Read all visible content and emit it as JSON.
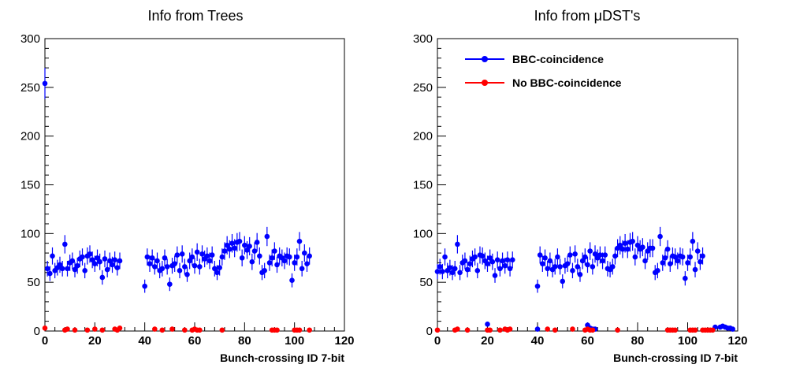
{
  "chart_data": [
    {
      "type": "scatter",
      "title": "Info from Trees",
      "xlabel": "Bunch-crossing ID 7-bit",
      "ylabel": "",
      "xlim": [
        0,
        120
      ],
      "ylim": [
        0,
        300
      ],
      "xticks": [
        "0",
        "20",
        "40",
        "60",
        "80",
        "100",
        "120"
      ],
      "yticks": [
        "0",
        "50",
        "100",
        "150",
        "200",
        "250",
        "300"
      ],
      "legend": null,
      "series": [
        {
          "color": "#0000ff",
          "points": [
            [
              0,
              254
            ],
            [
              1,
              64
            ],
            [
              2,
              59
            ],
            [
              3,
              77
            ],
            [
              4,
              62
            ],
            [
              5,
              65
            ],
            [
              6,
              68
            ],
            [
              7,
              64
            ],
            [
              8,
              89
            ],
            [
              9,
              64
            ],
            [
              10,
              70
            ],
            [
              11,
              72
            ],
            [
              12,
              63
            ],
            [
              13,
              67
            ],
            [
              14,
              74
            ],
            [
              15,
              76
            ],
            [
              16,
              62
            ],
            [
              17,
              77
            ],
            [
              18,
              79
            ],
            [
              19,
              73
            ],
            [
              20,
              69
            ],
            [
              21,
              75
            ],
            [
              22,
              71
            ],
            [
              23,
              55
            ],
            [
              24,
              74
            ],
            [
              25,
              63
            ],
            [
              26,
              72
            ],
            [
              27,
              68
            ],
            [
              28,
              73
            ],
            [
              29,
              65
            ],
            [
              30,
              72
            ],
            [
              40,
              46
            ],
            [
              41,
              76
            ],
            [
              42,
              69
            ],
            [
              43,
              75
            ],
            [
              44,
              66
            ],
            [
              45,
              72
            ],
            [
              46,
              62
            ],
            [
              47,
              64
            ],
            [
              48,
              75
            ],
            [
              49,
              66
            ],
            [
              50,
              48
            ],
            [
              51,
              67
            ],
            [
              52,
              69
            ],
            [
              53,
              78
            ],
            [
              54,
              62
            ],
            [
              55,
              79
            ],
            [
              56,
              66
            ],
            [
              57,
              58
            ],
            [
              58,
              72
            ],
            [
              59,
              76
            ],
            [
              60,
              67
            ],
            [
              61,
              81
            ],
            [
              62,
              66
            ],
            [
              63,
              79
            ],
            [
              64,
              74
            ],
            [
              65,
              77
            ],
            [
              66,
              72
            ],
            [
              67,
              78
            ],
            [
              68,
              64
            ],
            [
              69,
              60
            ],
            [
              70,
              65
            ],
            [
              71,
              76
            ],
            [
              72,
              82
            ],
            [
              73,
              88
            ],
            [
              74,
              84
            ],
            [
              75,
              90
            ],
            [
              76,
              85
            ],
            [
              77,
              91
            ],
            [
              78,
              92
            ],
            [
              79,
              75
            ],
            [
              80,
              88
            ],
            [
              81,
              83
            ],
            [
              82,
              87
            ],
            [
              83,
              71
            ],
            [
              84,
              82
            ],
            [
              85,
              91
            ],
            [
              86,
              77
            ],
            [
              87,
              60
            ],
            [
              88,
              62
            ],
            [
              89,
              97
            ],
            [
              90,
              70
            ],
            [
              91,
              75
            ],
            [
              92,
              82
            ],
            [
              93,
              68
            ],
            [
              94,
              77
            ],
            [
              95,
              75
            ],
            [
              96,
              72
            ],
            [
              97,
              77
            ],
            [
              98,
              76
            ],
            [
              99,
              52
            ],
            [
              100,
              70
            ],
            [
              101,
              76
            ],
            [
              102,
              92
            ],
            [
              103,
              64
            ],
            [
              104,
              80
            ],
            [
              105,
              69
            ],
            [
              106,
              77
            ]
          ]
        },
        {
          "color": "#ff0000",
          "points": [
            [
              0,
              3
            ],
            [
              8,
              1
            ],
            [
              9,
              2
            ],
            [
              12,
              1
            ],
            [
              17,
              1
            ],
            [
              20,
              2
            ],
            [
              23,
              1
            ],
            [
              28,
              2
            ],
            [
              29,
              1
            ],
            [
              30,
              3
            ],
            [
              44,
              2
            ],
            [
              47,
              1
            ],
            [
              51,
              2
            ],
            [
              56,
              1
            ],
            [
              59,
              1
            ],
            [
              60,
              2
            ],
            [
              61,
              1
            ],
            [
              62,
              1
            ],
            [
              71,
              1
            ],
            [
              91,
              1
            ],
            [
              92,
              1
            ],
            [
              93,
              1
            ],
            [
              100,
              1
            ],
            [
              101,
              1
            ],
            [
              102,
              1
            ],
            [
              106,
              1
            ]
          ]
        }
      ]
    },
    {
      "type": "scatter",
      "title": "Info from μDST's",
      "xlabel": "Bunch-crossing ID 7-bit",
      "ylabel": "",
      "xlim": [
        0,
        120
      ],
      "ylim": [
        0,
        300
      ],
      "xticks": [
        "0",
        "20",
        "40",
        "60",
        "80",
        "100",
        "120"
      ],
      "yticks": [
        "0",
        "50",
        "100",
        "150",
        "200",
        "250",
        "300"
      ],
      "legend": "top-left",
      "series": [
        {
          "name": "BBC-coincidence",
          "color": "#0000ff",
          "points": [
            [
              0,
              61
            ],
            [
              1,
              66
            ],
            [
              2,
              61
            ],
            [
              3,
              76
            ],
            [
              4,
              62
            ],
            [
              5,
              65
            ],
            [
              6,
              60
            ],
            [
              7,
              64
            ],
            [
              8,
              89
            ],
            [
              9,
              60
            ],
            [
              10,
              70
            ],
            [
              11,
              72
            ],
            [
              12,
              63
            ],
            [
              13,
              69
            ],
            [
              14,
              74
            ],
            [
              15,
              76
            ],
            [
              16,
              62
            ],
            [
              17,
              78
            ],
            [
              18,
              77
            ],
            [
              19,
              72
            ],
            [
              20,
              69
            ],
            [
              21,
              75
            ],
            [
              22,
              71
            ],
            [
              23,
              57
            ],
            [
              24,
              73
            ],
            [
              25,
              64
            ],
            [
              26,
              72
            ],
            [
              27,
              67
            ],
            [
              28,
              73
            ],
            [
              29,
              64
            ],
            [
              30,
              73
            ],
            [
              40,
              46
            ],
            [
              41,
              78
            ],
            [
              42,
              69
            ],
            [
              43,
              75
            ],
            [
              44,
              64
            ],
            [
              45,
              72
            ],
            [
              46,
              63
            ],
            [
              47,
              66
            ],
            [
              48,
              76
            ],
            [
              49,
              66
            ],
            [
              50,
              51
            ],
            [
              51,
              67
            ],
            [
              52,
              69
            ],
            [
              53,
              78
            ],
            [
              54,
              62
            ],
            [
              55,
              79
            ],
            [
              56,
              66
            ],
            [
              57,
              58
            ],
            [
              58,
              72
            ],
            [
              59,
              76
            ],
            [
              60,
              68
            ],
            [
              61,
              82
            ],
            [
              62,
              66
            ],
            [
              63,
              79
            ],
            [
              64,
              75
            ],
            [
              65,
              78
            ],
            [
              66,
              72
            ],
            [
              67,
              78
            ],
            [
              68,
              64
            ],
            [
              69,
              63
            ],
            [
              70,
              66
            ],
            [
              71,
              77
            ],
            [
              72,
              85
            ],
            [
              73,
              88
            ],
            [
              74,
              84
            ],
            [
              75,
              90
            ],
            [
              76,
              84
            ],
            [
              77,
              91
            ],
            [
              78,
              92
            ],
            [
              79,
              76
            ],
            [
              80,
              88
            ],
            [
              81,
              84
            ],
            [
              82,
              86
            ],
            [
              83,
              72
            ],
            [
              84,
              82
            ],
            [
              85,
              85
            ],
            [
              86,
              85
            ],
            [
              87,
              60
            ],
            [
              88,
              62
            ],
            [
              89,
              97
            ],
            [
              90,
              70
            ],
            [
              91,
              75
            ],
            [
              92,
              84
            ],
            [
              93,
              69
            ],
            [
              94,
              77
            ],
            [
              95,
              76
            ],
            [
              96,
              72
            ],
            [
              97,
              77
            ],
            [
              98,
              76
            ],
            [
              99,
              54
            ],
            [
              100,
              70
            ],
            [
              101,
              76
            ],
            [
              102,
              92
            ],
            [
              103,
              63
            ],
            [
              104,
              82
            ],
            [
              105,
              71
            ],
            [
              106,
              77
            ],
            [
              20,
              7
            ],
            [
              40,
              2
            ],
            [
              60,
              6
            ],
            [
              61,
              3
            ],
            [
              62,
              2
            ],
            [
              63,
              2
            ],
            [
              111,
              4
            ],
            [
              113,
              4
            ],
            [
              114,
              5
            ],
            [
              115,
              4
            ],
            [
              116,
              3
            ],
            [
              117,
              3
            ],
            [
              118,
              2
            ]
          ]
        },
        {
          "name": "No BBC-coincidence",
          "color": "#ff0000",
          "points": [
            [
              0,
              1
            ],
            [
              7,
              1
            ],
            [
              8,
              2
            ],
            [
              12,
              1
            ],
            [
              20,
              1
            ],
            [
              21,
              1
            ],
            [
              25,
              1
            ],
            [
              27,
              2
            ],
            [
              28,
              1
            ],
            [
              29,
              2
            ],
            [
              44,
              2
            ],
            [
              47,
              1
            ],
            [
              54,
              2
            ],
            [
              59,
              1
            ],
            [
              60,
              2
            ],
            [
              61,
              1
            ],
            [
              62,
              1
            ],
            [
              72,
              1
            ],
            [
              92,
              1
            ],
            [
              93,
              1
            ],
            [
              94,
              1
            ],
            [
              95,
              1
            ],
            [
              101,
              1
            ],
            [
              102,
              1
            ],
            [
              103,
              1
            ],
            [
              106,
              1
            ],
            [
              107,
              1
            ],
            [
              108,
              1
            ],
            [
              109,
              1
            ],
            [
              110,
              1
            ]
          ]
        }
      ]
    }
  ]
}
